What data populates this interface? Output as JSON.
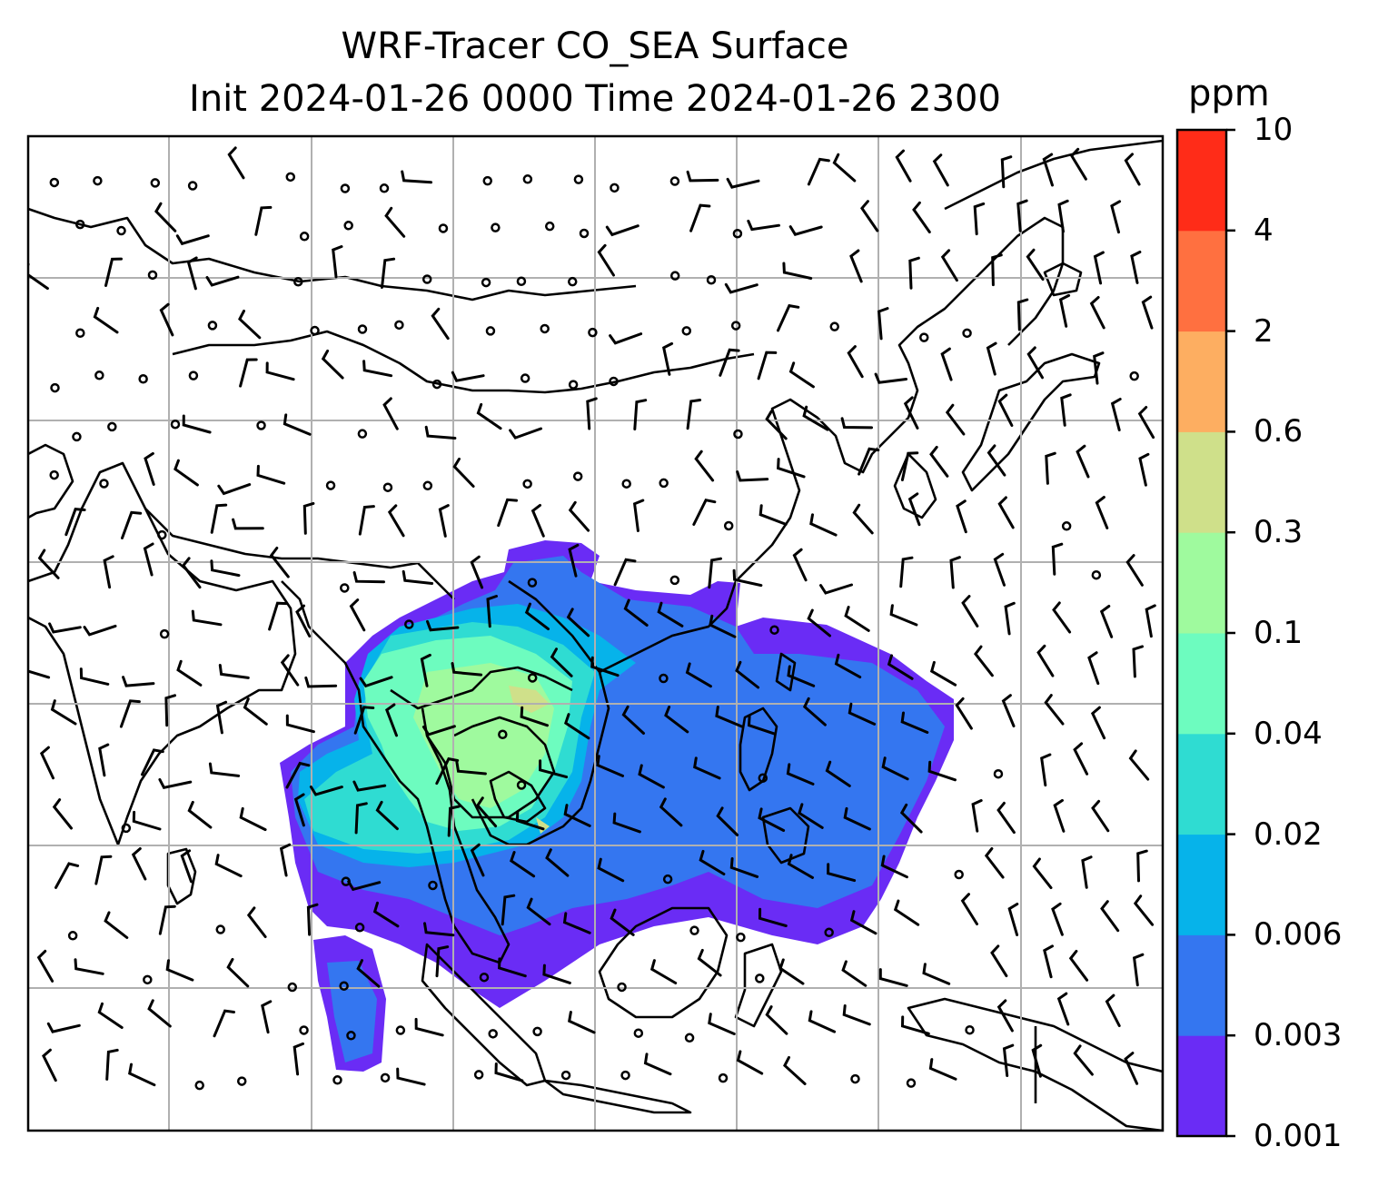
{
  "title_line1": "WRF-Tracer CO_SEA Surface",
  "title_line2": "Init 2024-01-26 0000 Time 2024-01-26 2300",
  "colorbar": {
    "unit": "ppm",
    "levels": [
      "0.001",
      "0.003",
      "0.006",
      "0.02",
      "0.04",
      "0.1",
      "0.3",
      "0.6",
      "2",
      "4",
      "10"
    ],
    "colors": [
      "#6a2cf5",
      "#3476f0",
      "#06b3ea",
      "#2fdcd2",
      "#6dfcbf",
      "#9ffa9e",
      "#cfe08a",
      "#fdae61",
      "#ff7040",
      "#ff2c18"
    ]
  },
  "map": {
    "grid": true,
    "features": [
      "coastlines",
      "borders",
      "wind-barbs",
      "calm-circles",
      "co-concentration-fill"
    ]
  }
}
